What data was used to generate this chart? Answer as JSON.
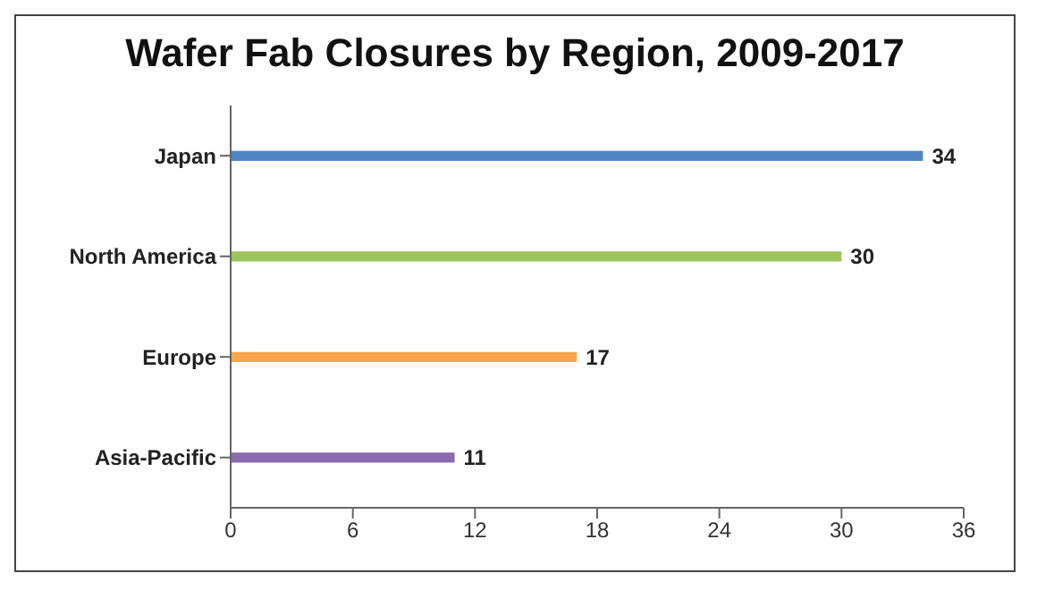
{
  "chart_data": {
    "type": "bar",
    "orientation": "horizontal",
    "title": "Wafer Fab Closures by Region, 2009-2017",
    "categories": [
      "Japan",
      "North America",
      "Europe",
      "Asia-Pacific"
    ],
    "values": [
      34,
      30,
      17,
      11
    ],
    "colors": [
      "#4f86c6",
      "#9bc45a",
      "#f9a54e",
      "#8a6bb0"
    ],
    "xlim": [
      0,
      36
    ],
    "xticks": [
      0,
      6,
      12,
      18,
      24,
      30,
      36
    ],
    "data_labels": true
  }
}
